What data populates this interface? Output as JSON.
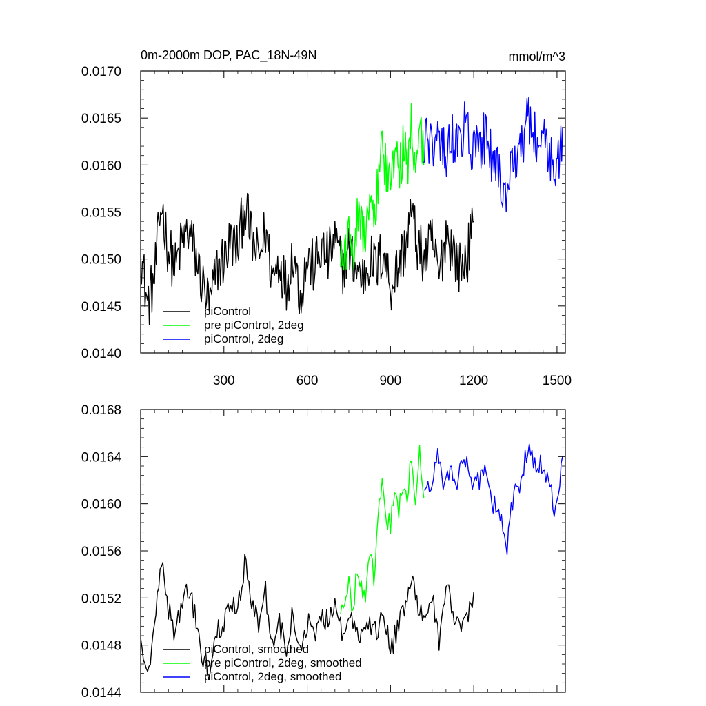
{
  "chart_data": [
    {
      "type": "line",
      "title": "0m-2000m DOP, PAC_18N-49N",
      "units": "mmol/m^3",
      "xlim": [
        0,
        1530
      ],
      "ylim": [
        0.014,
        0.017
      ],
      "xticks": [
        300,
        600,
        900,
        1200,
        1500
      ],
      "xtick_labels": [
        "300",
        "600",
        "900",
        "1200",
        "1500"
      ],
      "yticks": [
        0.014,
        0.0145,
        0.015,
        0.0155,
        0.016,
        0.0165,
        0.017
      ],
      "ytick_labels": [
        "0.0140",
        "0.0145",
        "0.0150",
        "0.0155",
        "0.0160",
        "0.0165",
        "0.0170"
      ],
      "legend_position": "bottom-left",
      "series": [
        {
          "name": "piControl",
          "color": "#000000",
          "x": [
            0,
            25,
            50,
            75,
            100,
            125,
            150,
            175,
            200,
            225,
            250,
            275,
            300,
            325,
            350,
            375,
            400,
            425,
            450,
            475,
            500,
            525,
            550,
            575,
            600,
            625,
            650,
            675,
            700,
            725,
            750,
            775,
            800,
            825,
            850,
            875,
            900,
            925,
            950,
            975,
            1000,
            1025,
            1050,
            1075,
            1100,
            1125,
            1150,
            1175,
            1200
          ],
          "values": [
            0.0151,
            0.0145,
            0.0148,
            0.0156,
            0.0151,
            0.0149,
            0.0152,
            0.0153,
            0.015,
            0.0147,
            0.0145,
            0.0149,
            0.015,
            0.0152,
            0.0151,
            0.0156,
            0.0152,
            0.015,
            0.0153,
            0.0148,
            0.015,
            0.0147,
            0.0151,
            0.0146,
            0.015,
            0.0149,
            0.0151,
            0.015,
            0.0152,
            0.0149,
            0.0151,
            0.0149,
            0.0148,
            0.015,
            0.0149,
            0.0151,
            0.0147,
            0.0149,
            0.0151,
            0.0155,
            0.0151,
            0.015,
            0.0152,
            0.0148,
            0.0153,
            0.0151,
            0.0149,
            0.015,
            0.0154
          ]
        },
        {
          "name": "pre piControl, 2deg",
          "color": "#00ff00",
          "x": [
            720,
            735,
            750,
            765,
            780,
            795,
            810,
            825,
            840,
            855,
            870,
            885,
            900,
            915,
            930,
            945,
            960,
            975,
            990,
            1005,
            1020
          ],
          "values": [
            0.0152,
            0.015,
            0.0153,
            0.0151,
            0.0155,
            0.0153,
            0.0152,
            0.0156,
            0.0154,
            0.0158,
            0.0163,
            0.0159,
            0.0158,
            0.0161,
            0.0159,
            0.0162,
            0.016,
            0.0164,
            0.016,
            0.0166,
            0.016
          ]
        },
        {
          "name": "piControl, 2deg",
          "color": "#0000ff",
          "x": [
            1020,
            1045,
            1070,
            1095,
            1120,
            1145,
            1170,
            1195,
            1220,
            1245,
            1270,
            1295,
            1320,
            1345,
            1370,
            1395,
            1420,
            1445,
            1470,
            1495,
            1520
          ],
          "values": [
            0.0163,
            0.0162,
            0.0164,
            0.0161,
            0.0163,
            0.0162,
            0.0164,
            0.0161,
            0.0162,
            0.0163,
            0.016,
            0.0159,
            0.0156,
            0.0161,
            0.0162,
            0.0165,
            0.0163,
            0.0163,
            0.0162,
            0.0158,
            0.0164
          ]
        }
      ]
    },
    {
      "type": "line",
      "title": "",
      "xlim": [
        0,
        1530
      ],
      "ylim": [
        0.0144,
        0.0168
      ],
      "xticks": [
        300,
        600,
        900,
        1200,
        1500
      ],
      "yticks": [
        0.0144,
        0.0148,
        0.0152,
        0.0156,
        0.016,
        0.0164,
        0.0168
      ],
      "ytick_labels": [
        "0.0144",
        "0.0148",
        "0.0152",
        "0.0156",
        "0.0160",
        "0.0164",
        "0.0168"
      ],
      "legend_position": "bottom-left",
      "series": [
        {
          "name": "piControl, smoothed",
          "color": "#000000",
          "x": [
            0,
            25,
            50,
            75,
            100,
            125,
            150,
            175,
            200,
            225,
            250,
            275,
            300,
            325,
            350,
            375,
            400,
            425,
            450,
            475,
            500,
            525,
            550,
            575,
            600,
            625,
            650,
            675,
            700,
            725,
            750,
            775,
            800,
            825,
            850,
            875,
            900,
            925,
            950,
            975,
            1000,
            1025,
            1050,
            1075,
            1100,
            1125,
            1150,
            1175,
            1200
          ],
          "values": [
            0.01495,
            0.0145,
            0.015,
            0.01555,
            0.0151,
            0.0149,
            0.0152,
            0.01525,
            0.015,
            0.0147,
            0.01455,
            0.0149,
            0.015,
            0.0152,
            0.0151,
            0.0155,
            0.0152,
            0.015,
            0.01525,
            0.0148,
            0.015,
            0.01475,
            0.0151,
            0.0147,
            0.015,
            0.0149,
            0.01505,
            0.015,
            0.01515,
            0.0149,
            0.01505,
            0.01495,
            0.01485,
            0.015,
            0.0149,
            0.0151,
            0.01475,
            0.01495,
            0.0151,
            0.0154,
            0.0151,
            0.015,
            0.0152,
            0.01485,
            0.0153,
            0.0151,
            0.01495,
            0.015,
            0.01525
          ]
        },
        {
          "name": "pre piControl, 2deg, smoothed",
          "color": "#00ff00",
          "x": [
            720,
            735,
            750,
            765,
            780,
            795,
            810,
            825,
            840,
            855,
            870,
            885,
            900,
            915,
            930,
            945,
            960,
            975,
            990,
            1005,
            1020
          ],
          "values": [
            0.01515,
            0.01505,
            0.0153,
            0.0151,
            0.01545,
            0.01525,
            0.0152,
            0.01555,
            0.0154,
            0.0158,
            0.0163,
            0.0159,
            0.0158,
            0.0161,
            0.01595,
            0.0162,
            0.01605,
            0.0164,
            0.01605,
            0.01645,
            0.01605
          ]
        },
        {
          "name": "piControl, 2deg, smoothed",
          "color": "#0000ff",
          "x": [
            1020,
            1045,
            1070,
            1095,
            1120,
            1145,
            1170,
            1195,
            1220,
            1245,
            1270,
            1295,
            1320,
            1345,
            1370,
            1395,
            1420,
            1445,
            1470,
            1495,
            1520
          ],
          "values": [
            0.0162,
            0.01615,
            0.0164,
            0.0161,
            0.0163,
            0.0162,
            0.0164,
            0.0161,
            0.0162,
            0.01635,
            0.016,
            0.0159,
            0.01565,
            0.0161,
            0.0162,
            0.0165,
            0.0163,
            0.01635,
            0.0162,
            0.0159,
            0.0164
          ]
        }
      ]
    }
  ]
}
